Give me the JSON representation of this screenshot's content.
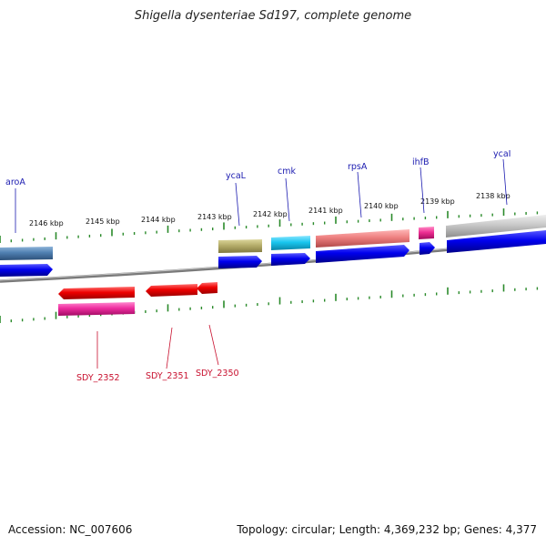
{
  "title": "Shigella dysenteriae Sd197, complete genome",
  "footer": {
    "accession": "Accession: NC_007606",
    "summary": "Topology: circular; Length: 4,369,232 bp; Genes: 4,377"
  },
  "colors": {
    "blue": "#0000ee",
    "steel": "#4f7fb0",
    "olive": "#b5ad6a",
    "cyan": "#19c6ef",
    "salmon": "#ee8080",
    "magenta": "#ee2f93",
    "gray": "#c8c8c8",
    "red": "#ee0000",
    "pink": "#ee2d9f",
    "backbone": "#888888",
    "tick": "#2a8a2a",
    "label_blue": "#1b1bb0",
    "label_red": "#c8102e"
  },
  "scale_labels": [
    "2146 kbp",
    "2145 kbp",
    "2144 kbp",
    "2143 kbp",
    "2142 kbp",
    "2141 kbp",
    "2140 kbp",
    "2139 kbp",
    "2138 kbp"
  ],
  "gene_labels_top": [
    "aroA",
    "ycaL",
    "cmk",
    "rpsA",
    "ihfB",
    "ycaI"
  ],
  "gene_labels_bottom": [
    "SDY_2352",
    "SDY_2351",
    "SDY_2350"
  ]
}
